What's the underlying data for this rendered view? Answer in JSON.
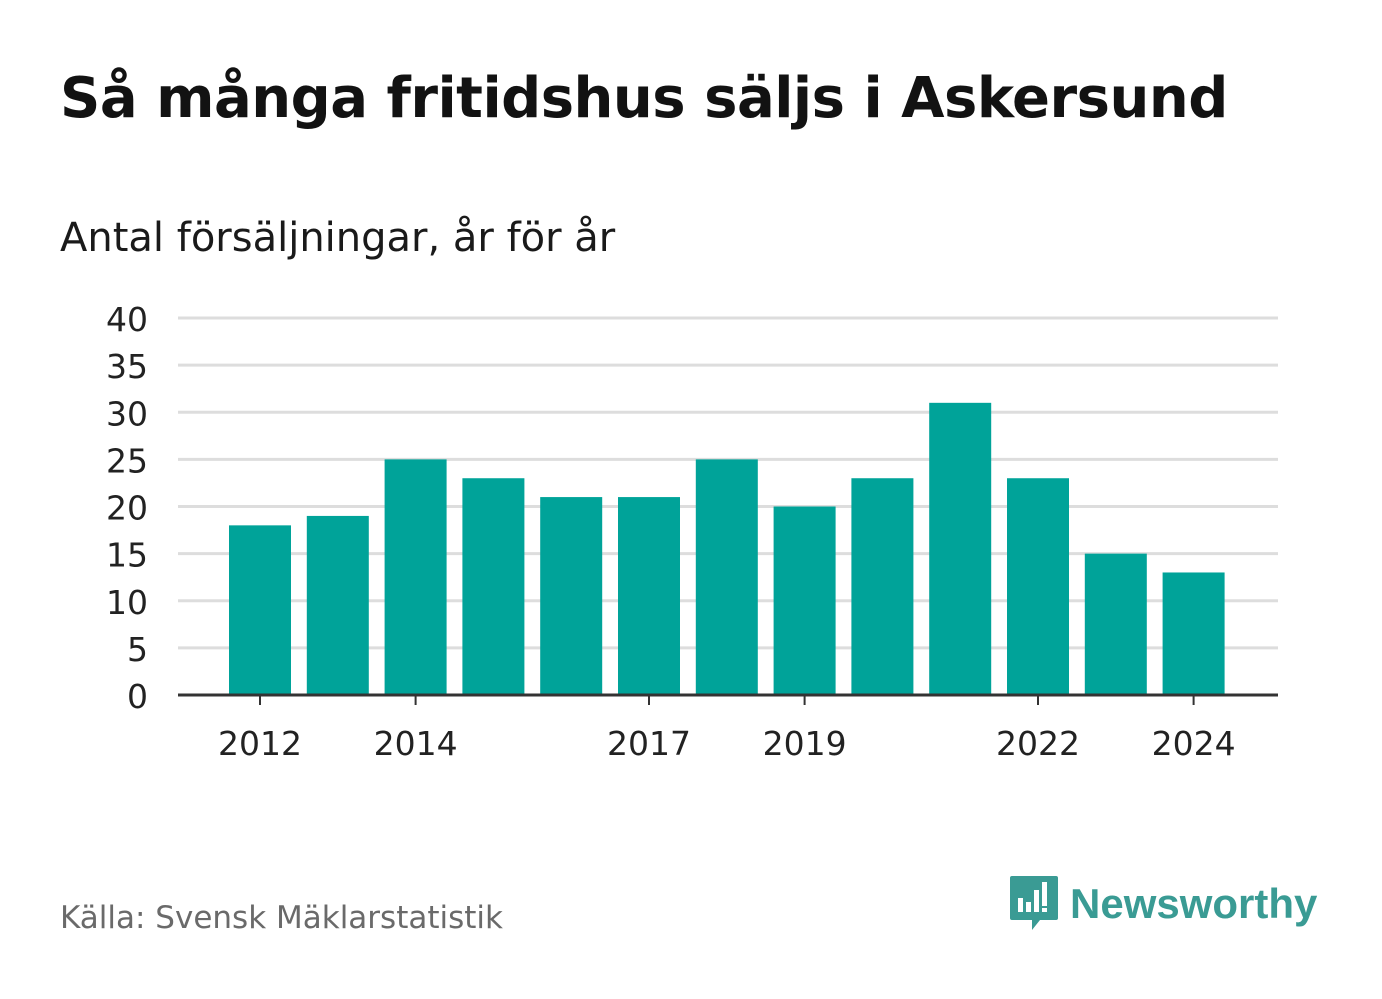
{
  "header": {
    "title": "Så många fritidshus säljs i Askersund",
    "subtitle": "Antal försäljningar, år för år"
  },
  "footer": {
    "source": "Källa: Svensk Mäklarstatistik",
    "brand": "Newsworthy"
  },
  "colors": {
    "bar": "#00a399",
    "grid": "#dddddd",
    "axis": "#333333",
    "brand": "#3a9b94"
  },
  "chart_data": {
    "type": "bar",
    "categories": [
      "2012",
      "2013",
      "2014",
      "2015",
      "2016",
      "2017",
      "2018",
      "2019",
      "2020",
      "2021",
      "2022",
      "2023",
      "2024"
    ],
    "values": [
      18,
      19,
      25,
      23,
      21,
      21,
      25,
      20,
      23,
      31,
      23,
      15,
      13
    ],
    "x_tick_labels": [
      "2012",
      "2014",
      "2017",
      "2019",
      "2022",
      "2024"
    ],
    "y_ticks": [
      0,
      5,
      10,
      15,
      20,
      25,
      30,
      35,
      40
    ],
    "ylim": [
      0,
      40
    ],
    "grid": true
  }
}
